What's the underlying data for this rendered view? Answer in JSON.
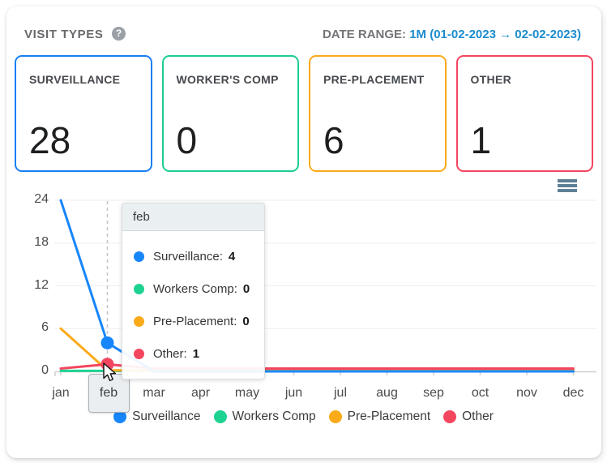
{
  "header": {
    "title": "VISIT TYPES",
    "help_icon": "?",
    "date_range_label": "DATE RANGE:",
    "date_range_value": "1M (01-02-2023 → 02-02-2023)"
  },
  "cards": [
    {
      "label": "SURVEILLANCE",
      "value": "28",
      "color": "#1a7ff5"
    },
    {
      "label": "WORKER'S COMP",
      "value": "0",
      "color": "#1dce8e"
    },
    {
      "label": "PRE-PLACEMENT",
      "value": "6",
      "color": "#fbaa1a"
    },
    {
      "label": "OTHER",
      "value": "1",
      "color": "#f4465f"
    }
  ],
  "chart_data": {
    "type": "line",
    "x": [
      "jan",
      "feb",
      "mar",
      "apr",
      "may",
      "jun",
      "jul",
      "aug",
      "sep",
      "oct",
      "nov",
      "dec"
    ],
    "series": [
      {
        "name": "Surveillance",
        "color": "#1786fb",
        "values": [
          24,
          4,
          0,
          0,
          0,
          0,
          0,
          0,
          0,
          0,
          0,
          0
        ]
      },
      {
        "name": "Workers Comp",
        "color": "#1ed292",
        "values": [
          0,
          0,
          0,
          0,
          0,
          0,
          0,
          0,
          0,
          0,
          0,
          0
        ]
      },
      {
        "name": "Pre-Placement",
        "color": "#fbaa1a",
        "values": [
          6,
          0,
          0,
          0,
          0,
          0,
          0,
          0,
          0,
          0,
          0,
          0
        ]
      },
      {
        "name": "Other",
        "color": "#f4465f",
        "values": [
          0,
          1,
          0,
          0,
          0,
          0,
          0,
          0,
          0,
          0,
          0,
          0
        ]
      }
    ],
    "ylim": [
      0,
      24
    ],
    "yticks": [
      0,
      6,
      12,
      18,
      24
    ],
    "grid": "horizontal",
    "legend_position": "bottom",
    "highlight_month": "feb",
    "highlighted_points": [
      {
        "series": "Surveillance",
        "month": "feb",
        "value": 4
      },
      {
        "series": "Other",
        "month": "feb",
        "value": 1
      }
    ]
  },
  "tooltip": {
    "title": "feb",
    "rows": [
      {
        "label": "Surveillance:",
        "value": "4",
        "color": "#1786fb"
      },
      {
        "label": "Workers Comp:",
        "value": "0",
        "color": "#1ed292"
      },
      {
        "label": "Pre-Placement:",
        "value": "0",
        "color": "#fbaa1a"
      },
      {
        "label": "Other:",
        "value": "1",
        "color": "#f4465f"
      }
    ]
  },
  "legend": [
    {
      "label": "Surveillance",
      "color": "#1786fb"
    },
    {
      "label": "Workers Comp",
      "color": "#1ed292"
    },
    {
      "label": "Pre-Placement",
      "color": "#fbaa1a"
    },
    {
      "label": "Other",
      "color": "#f4465f"
    }
  ]
}
